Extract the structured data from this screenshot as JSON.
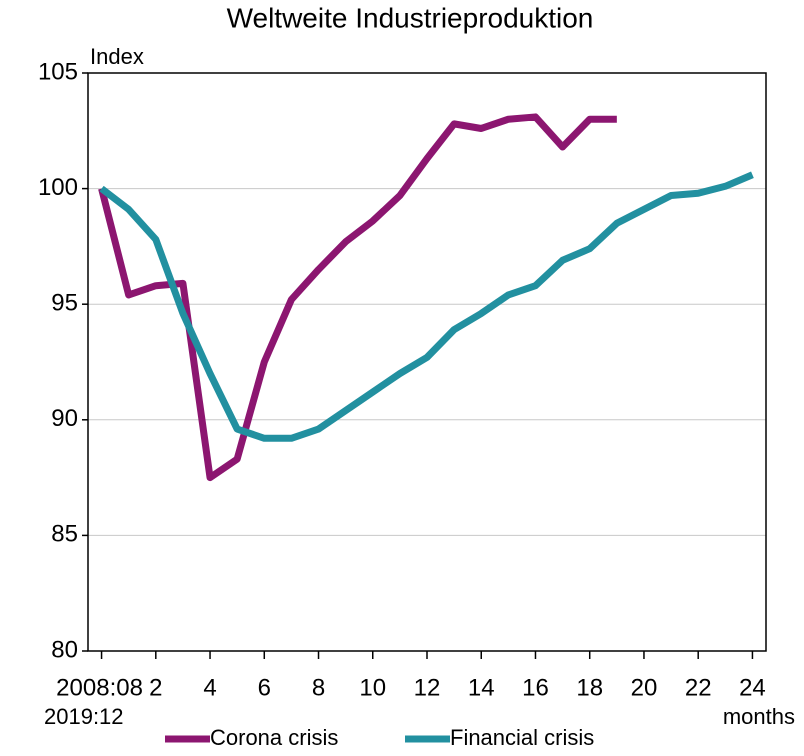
{
  "chart_data": {
    "type": "line",
    "title": "Weltweite Industrieproduktion",
    "y_label": "Index",
    "x_label": "months",
    "x_origin_second_label": "2019:12",
    "x": [
      0,
      1,
      2,
      3,
      4,
      5,
      6,
      7,
      8,
      9,
      10,
      11,
      12,
      13,
      14,
      15,
      16,
      17,
      18,
      19,
      20,
      21,
      22,
      23,
      24
    ],
    "series": [
      {
        "name": "Corona crisis",
        "color": "#8c1670",
        "values": [
          100,
          95.4,
          95.8,
          95.9,
          87.5,
          88.3,
          92.5,
          95.2,
          96.5,
          97.7,
          98.6,
          99.7,
          101.3,
          102.8,
          102.6,
          103.0,
          103.1,
          101.8,
          103.0,
          103.0,
          null,
          null,
          null,
          null,
          null
        ]
      },
      {
        "name": "Financial crisis",
        "color": "#2290a0",
        "values": [
          100,
          99.1,
          97.8,
          94.6,
          92.0,
          89.6,
          89.2,
          89.2,
          89.6,
          90.4,
          91.2,
          92.0,
          92.7,
          93.9,
          94.6,
          95.4,
          95.8,
          96.9,
          97.4,
          98.5,
          99.1,
          99.7,
          99.8,
          100.1,
          100.6
        ]
      }
    ],
    "xlim": [
      -0.5,
      24.5
    ],
    "xticks": [
      {
        "value": 0,
        "label": "2008:08"
      },
      2,
      4,
      6,
      8,
      10,
      12,
      14,
      16,
      18,
      20,
      22,
      24
    ],
    "ylim": [
      80,
      105
    ],
    "yticks": [
      80,
      85,
      90,
      95,
      100,
      105
    ],
    "grid": true,
    "legend": "bottom"
  }
}
